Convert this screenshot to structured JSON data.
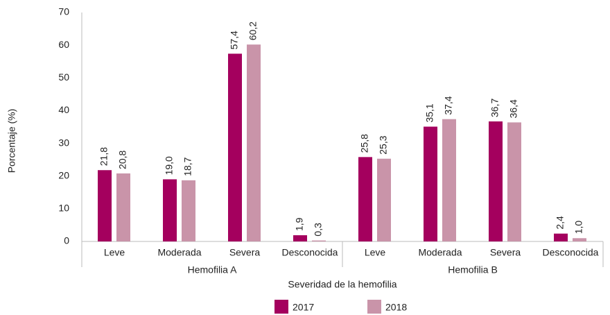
{
  "chart_data": {
    "type": "bar",
    "y_label": "Porcentaje (%)",
    "x_label": "Severidad de la hemofilia",
    "categories": [
      "Leve",
      "Moderada",
      "Severa",
      "Desconocida",
      "Leve",
      "Moderada",
      "Severa",
      "Desconocida"
    ],
    "groups": [
      "Hemofilia A",
      "Hemofilia B"
    ],
    "series": [
      {
        "name": "2017",
        "color": "#a4005e",
        "values": [
          21.8,
          19.0,
          57.4,
          1.9,
          25.8,
          35.1,
          36.7,
          2.4
        ],
        "value_labels": [
          "21,8",
          "19,0",
          "57,4",
          "1,9",
          "25,8",
          "35,1",
          "36,7",
          "2,4"
        ]
      },
      {
        "name": "2018",
        "color": "#c994a9",
        "values": [
          20.8,
          18.7,
          60.2,
          0.3,
          25.3,
          37.4,
          36.4,
          1.0
        ],
        "value_labels": [
          "20,8",
          "18,7",
          "60,2",
          "0,3",
          "25,3",
          "37,4",
          "36,4",
          "1,0"
        ]
      }
    ],
    "ylim": [
      0,
      70
    ],
    "yticks": [
      0,
      10,
      20,
      30,
      40,
      50,
      60,
      70
    ],
    "grid": false,
    "legend": "bottom"
  }
}
